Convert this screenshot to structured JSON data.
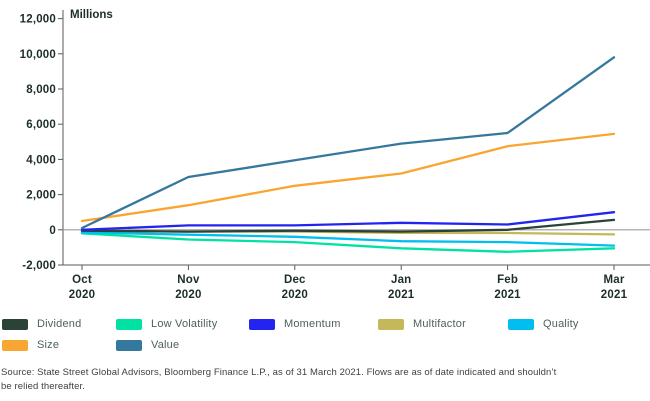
{
  "chart": {
    "units_label": "Millions",
    "y_ticks": [
      {
        "label": "12,000",
        "value": 12000
      },
      {
        "label": "10,000",
        "value": 10000
      },
      {
        "label": "8,000",
        "value": 8000
      },
      {
        "label": "6,000",
        "value": 6000
      },
      {
        "label": "4,000",
        "value": 4000
      },
      {
        "label": "2,000",
        "value": 2000
      },
      {
        "label": "0",
        "value": 0
      },
      {
        "label": "-2,000",
        "value": -2000
      }
    ],
    "x_labels": [
      {
        "line1": "Oct",
        "line2": "2020"
      },
      {
        "line1": "Nov",
        "line2": "2020"
      },
      {
        "line1": "Dec",
        "line2": "2020"
      },
      {
        "line1": "Jan",
        "line2": "2021"
      },
      {
        "line1": "Feb",
        "line2": "2021"
      },
      {
        "line1": "Mar",
        "line2": "2021"
      }
    ],
    "axis_color": "#58595b",
    "zero_line_color": "#9b9b9b",
    "label_color": "#1d2d28"
  },
  "chart_data": {
    "type": "line",
    "title": "",
    "ylabel": "Millions",
    "xlabel": "",
    "ylim": [
      -2000,
      12000
    ],
    "grid": false,
    "legend_position": "bottom",
    "x": [
      "Oct 2020",
      "Nov 2020",
      "Dec 2020",
      "Jan 2021",
      "Feb 2021",
      "Mar 2021"
    ],
    "series": [
      {
        "name": "Dividend",
        "color": "#2b4237",
        "values": [
          -50,
          -100,
          -50,
          -100,
          0,
          560
        ]
      },
      {
        "name": "Low Volatility",
        "color": "#00e2a3",
        "values": [
          -200,
          -550,
          -700,
          -1050,
          -1250,
          -1050
        ]
      },
      {
        "name": "Momentum",
        "color": "#2424f0",
        "values": [
          0,
          250,
          250,
          400,
          300,
          1000
        ]
      },
      {
        "name": "Multifactor",
        "color": "#c4b85a",
        "values": [
          -50,
          -100,
          -100,
          -170,
          -180,
          -260
        ]
      },
      {
        "name": "Quality",
        "color": "#00bff0",
        "values": [
          -150,
          -280,
          -400,
          -650,
          -700,
          -900
        ]
      },
      {
        "name": "Size",
        "color": "#f9a531",
        "values": [
          500,
          1400,
          2500,
          3200,
          4750,
          5450
        ]
      },
      {
        "name": "Value",
        "color": "#35789e",
        "values": [
          100,
          3000,
          3950,
          4900,
          5500,
          9800
        ]
      }
    ],
    "draw_order": [
      "Low Volatility",
      "Multifactor",
      "Quality",
      "Dividend",
      "Momentum",
      "Size",
      "Value"
    ]
  },
  "source": {
    "line1": "Source: State Street Global Advisors, Bloomberg Finance L.P., as of 31 March 2021. Flows are as of date indicated and shouldn’t",
    "line2": "be relied thereafter."
  }
}
